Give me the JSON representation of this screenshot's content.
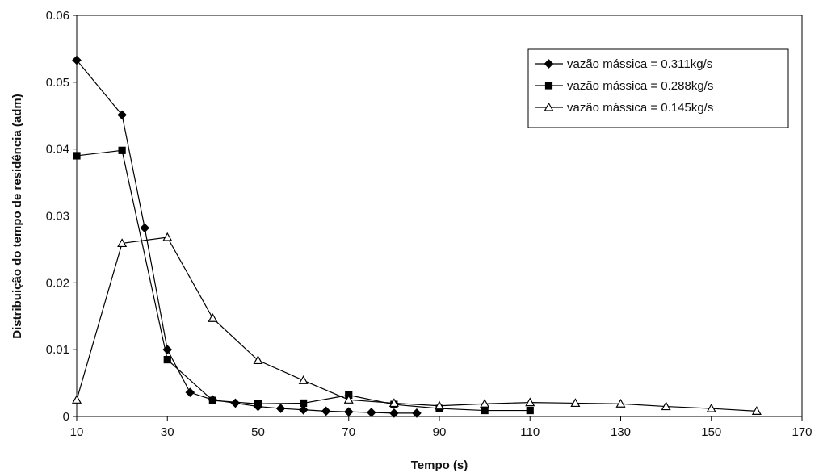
{
  "chart_data": {
    "type": "line",
    "title": "",
    "xlabel": "Tempo (s)",
    "ylabel": "Distribuição do tempo de residência (adm)",
    "xlim": [
      10,
      170
    ],
    "ylim": [
      0,
      0.06
    ],
    "x_ticks": [
      "10",
      "30",
      "50",
      "70",
      "90",
      "110",
      "130",
      "150",
      "170"
    ],
    "y_ticks": [
      "0",
      "0.01",
      "0.02",
      "0.03",
      "0.04",
      "0.05",
      "0.06"
    ],
    "grid": false,
    "legend_position": "top-right",
    "series": [
      {
        "name": "vazão mássica = 0.311kg/s",
        "marker": "diamond",
        "color": "#000000",
        "points": [
          [
            10,
            0.0533
          ],
          [
            20,
            0.0451
          ],
          [
            25,
            0.0282
          ],
          [
            30,
            0.01
          ],
          [
            35,
            0.0036
          ],
          [
            40,
            0.0025
          ],
          [
            45,
            0.002
          ],
          [
            50,
            0.0015
          ],
          [
            55,
            0.0012
          ],
          [
            60,
            0.001
          ],
          [
            65,
            0.0008
          ],
          [
            70,
            0.0007
          ],
          [
            75,
            0.0006
          ],
          [
            80,
            0.0005
          ],
          [
            85,
            0.0005
          ]
        ]
      },
      {
        "name": "vazão mássica = 0.288kg/s",
        "marker": "square",
        "color": "#000000",
        "points": [
          [
            10,
            0.039
          ],
          [
            20,
            0.0398
          ],
          [
            30,
            0.0085
          ],
          [
            40,
            0.0024
          ],
          [
            50,
            0.0019
          ],
          [
            60,
            0.002
          ],
          [
            70,
            0.0032
          ],
          [
            80,
            0.0018
          ],
          [
            90,
            0.0012
          ],
          [
            100,
            0.0009
          ],
          [
            110,
            0.0009
          ]
        ]
      },
      {
        "name": "vazão mássica = 0.145kg/s",
        "marker": "triangle",
        "color": "#000000",
        "points": [
          [
            10,
            0.0025
          ],
          [
            20,
            0.0259
          ],
          [
            30,
            0.0268
          ],
          [
            40,
            0.0147
          ],
          [
            50,
            0.0084
          ],
          [
            60,
            0.0054
          ],
          [
            70,
            0.0025
          ],
          [
            80,
            0.002
          ],
          [
            90,
            0.0016
          ],
          [
            100,
            0.0019
          ],
          [
            110,
            0.0021
          ],
          [
            120,
            0.002
          ],
          [
            130,
            0.0019
          ],
          [
            140,
            0.0015
          ],
          [
            150,
            0.0012
          ],
          [
            160,
            0.0008
          ]
        ]
      }
    ]
  }
}
